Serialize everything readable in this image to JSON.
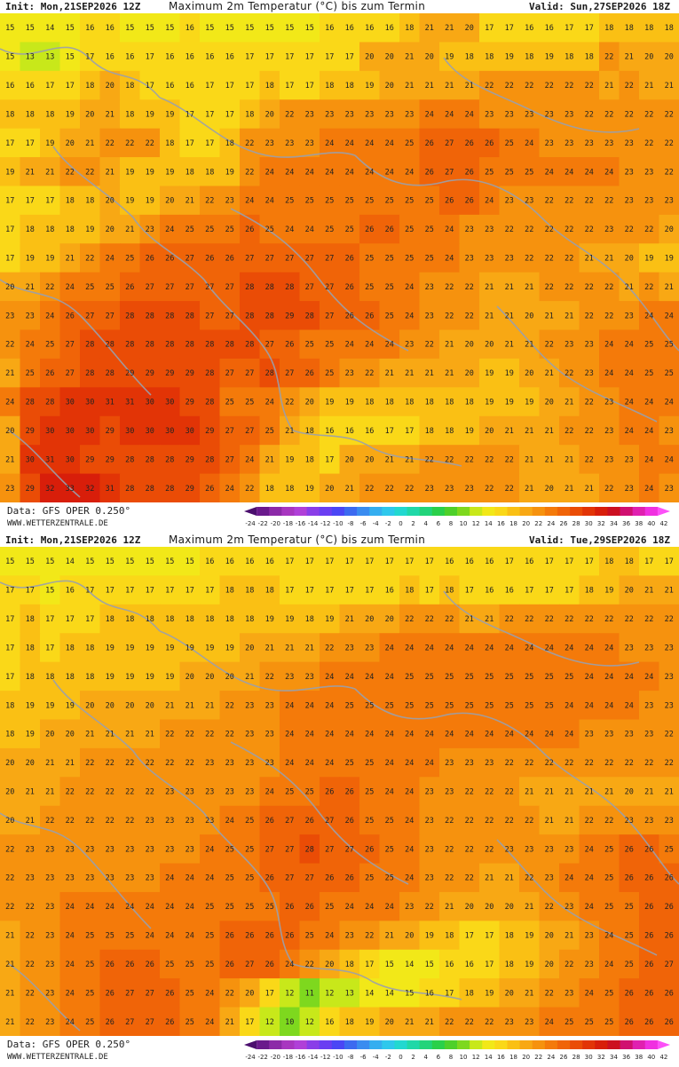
{
  "colors": {
    "border": "#9aa0ad",
    "label": "#222222"
  },
  "colorscale": {
    "levels": [
      "-24",
      "-22",
      "-20",
      "-18",
      "-16",
      "-14",
      "-12",
      "-10",
      "-8",
      "-6",
      "-4",
      "-2",
      "0",
      "2",
      "4",
      "6",
      "8",
      "10",
      "12",
      "14",
      "16",
      "18",
      "20",
      "22",
      "24",
      "26",
      "28",
      "30",
      "32",
      "34",
      "36",
      "38",
      "40",
      "42"
    ],
    "colors": [
      "#4b0f6e",
      "#6a1a8c",
      "#8c2aa8",
      "#a836c0",
      "#b040d8",
      "#8a3ee8",
      "#6a3ef2",
      "#4a46f5",
      "#3c6af0",
      "#3a8cf0",
      "#34aef0",
      "#2ec8ec",
      "#22d8d0",
      "#20d8a8",
      "#22d47a",
      "#2ad04a",
      "#4ed02a",
      "#7ed81e",
      "#c8e81a",
      "#f2e818",
      "#fad818",
      "#fac014",
      "#f8a814",
      "#f6920e",
      "#f47a0a",
      "#f06408",
      "#ea4c06",
      "#e23406",
      "#d81e0a",
      "#cc1020",
      "#d01070",
      "#e020b0",
      "#f030e0",
      "#fc50f8"
    ]
  },
  "panels": [
    {
      "init": "Init: Mon,21SEP2026 12Z",
      "title": "Maximum 2m Temperatur (°C) bis zum Termin",
      "valid": "Valid: Sun,27SEP2026 18Z",
      "source": "Data: GFS OPER 0.250°",
      "site": "WWW.WETTERZENTRALE.DE",
      "grid": [
        "15 15 14 15 16 16 15 15 15 16 15 15 15 15 15 15 16 16 16 16 18 21 21 20 17 17 16 16 17 17 18 18 18 18",
        "15 13 13 15 17 16 16 17 16 16 16 16 17 17 17 17 17 17 20 20 21 20 19 18 18 19 18 19 18 18 22 21 20 20",
        "16 16 17 17 18 20 18 17 16 16 17 17 17 18 17 17 18 18 19 20 21 21 21 21 22 22 22 22 22 22 21 22 21 21",
        "18 18 18 19 20 21 18 19 19 17 17 17 18 20 22 23 23 23 23 23 23 24 24 24 23 23 23 23 23 22 22 22 22 22",
        "17 17 19 20 21 22 22 22 18 17 17 18 22 23 23 23 24 24 24 24 25 26 27 26 26 25 24 23 23 23 23 23 22 22",
        "19 21 21 22 22 21 19 19 19 18 18 19 22 24 24 24 24 24 24 24 24 26 27 26 25 25 25 24 24 24 24 23 23 22",
        "17 17 17 18 18 20 19 19 20 21 22 23 24 24 25 25 25 25 25 25 25 25 26 26 24 23 23 22 22 22 22 23 23 23",
        "17 18 18 18 19 20 21 23 24 25 25 25 26 25 24 24 25 25 26 26 25 25 24 23 23 22 22 22 22 22 23 22 22 20",
        "17 19 19 21 22 24 25 26 26 27 26 26 27 27 27 27 27 26 25 25 25 25 24 23 23 23 22 22 22 21 21 20 19 19",
        "20 21 22 24 25 25 26 27 27 27 27 27 28 28 28 27 27 26 25 25 24 23 22 22 21 21 21 22 22 22 22 21 22 21",
        "23 23 24 26 27 27 28 28 28 28 27 27 28 28 29 28 27 26 26 25 24 23 22 22 21 21 20 21 21 22 22 23 24 24",
        "22 24 25 27 28 28 28 28 28 28 28 28 28 27 26 25 25 24 24 24 23 22 21 20 20 21 21 22 23 23 24 24 25 25",
        "21 25 26 27 28 28 29 29 29 29 28 27 27 28 27 26 25 23 22 21 21 21 21 20 19 19 20 21 22 23 24 24 25 25",
        "24 28 28 30 30 31 31 30 30 29 28 25 25 24 22 20 19 19 18 18 18 18 18 18 19 19 19 20 21 22 23 24 24 24",
        "20 29 30 30 30 29 30 30 30 30 29 27 27 25 21 18 16 16 16 17 17 18 18 19 20 21 21 21 22 22 23 24 24 23",
        "21 30 31 30 29 29 28 28 28 29 28 27 24 21 19 18 17 20 20 21 21 22 22 22 22 22 21 21 21 22 23 23 24 24",
        "23 29 32 33 32 31 28 28 28 29 26 24 22 18 18 19 20 21 22 22 22 23 23 23 22 22 21 20 21 21 22 23 24 23"
      ]
    },
    {
      "init": "Init: Mon,21SEP2026 12Z",
      "title": "Maximum 2m Temperatur (°C) bis zum Termin",
      "valid": "Valid: Tue,29SEP2026 18Z",
      "source": "Data: GFS OPER 0.250°",
      "site": "WWW.WETTERZENTRALE.DE",
      "grid": [
        "15 15 15 14 15 15 15 15 15 15 16 16 16 16 17 17 17 17 17 17 17 17 16 16 16 17 16 17 17 17 18 18 17 17",
        "17 17 15 16 17 17 17 17 17 17 17 18 18 18 17 17 17 17 17 16 18 17 18 17 16 16 17 17 17 18 19 20 21 21",
        "17 18 17 17 17 18 18 18 18 18 18 18 18 19 19 18 19 21 20 20 22 22 22 21 21 22 22 22 22 22 22 22 22 22",
        "17 18 17 18 18 19 19 19 19 19 19 19 20 21 21 21 22 23 23 24 24 24 24 24 24 24 24 24 24 24 24 23 23 23",
        "17 18 18 18 18 19 19 19 19 20 20 20 21 22 23 23 24 24 24 24 25 25 25 25 25 25 25 25 25 24 24 24 24 23",
        "18 19 19 19 20 20 20 20 21 21 21 22 23 23 24 24 24 25 25 25 25 25 25 25 25 25 25 25 24 24 24 24 23 23",
        "18 19 20 20 21 21 21 21 22 22 22 22 23 23 24 24 24 24 24 24 24 24 24 24 24 24 24 24 24 23 23 23 23 22",
        "20 20 21 21 22 22 22 22 22 22 23 23 23 23 24 24 24 25 25 24 24 24 23 23 23 22 22 22 22 22 22 22 22 22",
        "20 21 21 22 22 22 22 22 23 23 23 23 23 24 25 25 26 26 25 24 24 23 23 22 22 22 21 21 21 21 21 20 21 21",
        "20 21 22 22 22 22 22 23 23 23 23 24 25 26 27 26 27 26 25 25 24 23 22 22 22 22 22 21 21 22 22 23 23 23",
        "22 23 23 23 23 23 23 23 23 23 24 25 25 27 27 28 27 27 26 25 24 23 22 22 22 23 23 23 23 24 25 26 26 25",
        "22 23 23 23 23 23 23 23 24 24 24 25 25 26 27 27 26 26 25 25 24 23 22 22 21 21 22 23 24 24 25 26 26 26",
        "22 22 23 24 24 24 24 24 24 24 25 25 25 25 26 26 25 24 24 24 23 22 21 20 20 20 21 22 23 24 25 25 26 26",
        "21 22 23 24 25 25 25 24 24 24 25 26 26 26 26 25 24 23 22 21 20 19 18 17 17 18 19 20 21 23 24 25 26 26",
        "21 22 23 24 25 26 26 26 25 25 25 26 27 26 24 22 20 18 17 15 14 15 16 16 17 18 19 20 22 23 24 25 26 27",
        "21 22 23 24 25 26 27 27 26 25 24 22 20 17 12 11 12 13 14 14 15 16 17 18 19 20 21 22 23 24 25 26 26 26",
        "21 22 23 24 25 26 27 27 26 25 24 21 17 12 10 12 16 18 19 20 21 21 22 22 22 23 23 24 25 25 25 26 26 26"
      ]
    }
  ]
}
